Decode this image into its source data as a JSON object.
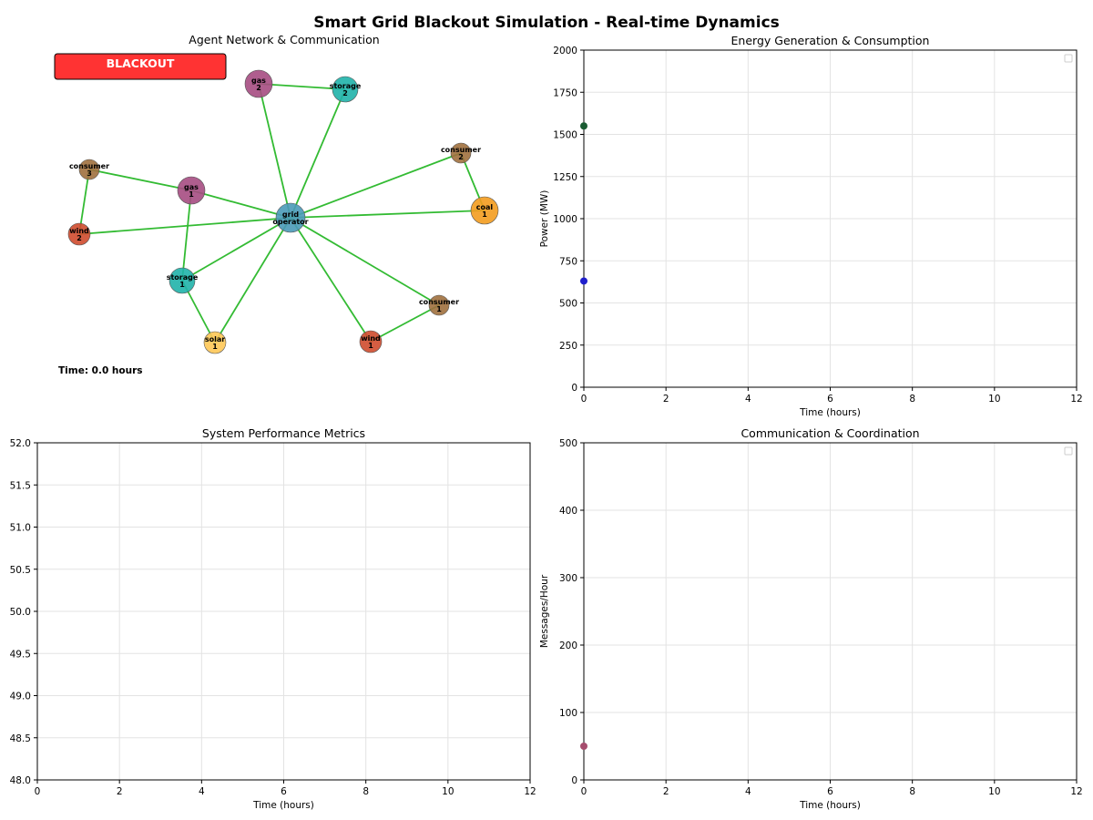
{
  "figure": {
    "title": "Smart Grid Blackout Simulation - Real-time Dynamics"
  },
  "network": {
    "title": "Agent Network & Communication",
    "status": {
      "label": "BLACKOUT",
      "color": "#ff3333"
    },
    "time_label": "Time: 0.0 hours",
    "edge_color": "#33bb33",
    "nodes": [
      {
        "id": "grid_operator",
        "line1": "grid",
        "line2": "operator",
        "color": "#4a9ab8"
      },
      {
        "id": "gas_2",
        "line1": "gas",
        "line2": "2",
        "color": "#a64d82"
      },
      {
        "id": "storage_2",
        "line1": "storage",
        "line2": "2",
        "color": "#20b2aa"
      },
      {
        "id": "consumer_2",
        "line1": "consumer",
        "line2": "2",
        "color": "#a0703e"
      },
      {
        "id": "consumer_3",
        "line1": "consumer",
        "line2": "3",
        "color": "#a0703e"
      },
      {
        "id": "gas_1",
        "line1": "gas",
        "line2": "1",
        "color": "#a64d82"
      },
      {
        "id": "coal_1",
        "line1": "coal",
        "line2": "1",
        "color": "#f39c1f"
      },
      {
        "id": "wind_2",
        "line1": "wind",
        "line2": "2",
        "color": "#cf4b2e"
      },
      {
        "id": "storage_1",
        "line1": "storage",
        "line2": "1",
        "color": "#20b2aa"
      },
      {
        "id": "consumer_1",
        "line1": "consumer",
        "line2": "1",
        "color": "#a0703e"
      },
      {
        "id": "solar_1",
        "line1": "solar",
        "line2": "1",
        "color": "#ffc857"
      },
      {
        "id": "wind_1",
        "line1": "wind",
        "line2": "1",
        "color": "#cf4b2e"
      }
    ],
    "edges": [
      [
        "gas_2",
        "storage_2"
      ],
      [
        "gas_2",
        "grid_operator"
      ],
      [
        "storage_2",
        "grid_operator"
      ],
      [
        "consumer_3",
        "gas_1"
      ],
      [
        "consumer_3",
        "wind_2"
      ],
      [
        "gas_1",
        "grid_operator"
      ],
      [
        "gas_1",
        "storage_1"
      ],
      [
        "wind_2",
        "grid_operator"
      ],
      [
        "consumer_2",
        "grid_operator"
      ],
      [
        "consumer_2",
        "coal_1"
      ],
      [
        "coal_1",
        "grid_operator"
      ],
      [
        "storage_1",
        "grid_operator"
      ],
      [
        "storage_1",
        "solar_1"
      ],
      [
        "solar_1",
        "grid_operator"
      ],
      [
        "wind_1",
        "grid_operator"
      ],
      [
        "wind_1",
        "consumer_1"
      ],
      [
        "consumer_1",
        "grid_operator"
      ]
    ]
  },
  "chart_data": [
    {
      "type": "scatter",
      "title": "Energy Generation & Consumption",
      "xlabel": "Time (hours)",
      "ylabel": "Power (MW)",
      "xlim": [
        0,
        12
      ],
      "ylim": [
        0,
        2000
      ],
      "xticks": [
        0,
        2,
        4,
        6,
        8,
        10,
        12
      ],
      "yticks": [
        0,
        250,
        500,
        750,
        1000,
        1250,
        1500,
        1750,
        2000
      ],
      "grid": true,
      "legend": "top-right",
      "series": [
        {
          "x": [
            0
          ],
          "y": [
            1550
          ],
          "color": "#1a5c32"
        },
        {
          "x": [
            0
          ],
          "y": [
            630
          ],
          "color": "#1f1fcc"
        }
      ]
    },
    {
      "type": "line",
      "title": "System Performance Metrics",
      "xlabel": "Time (hours)",
      "ylabel": "",
      "xlim": [
        0,
        12
      ],
      "ylim": [
        48,
        52
      ],
      "xticks": [
        0,
        2,
        4,
        6,
        8,
        10,
        12
      ],
      "yticks": [
        "48.0",
        "48.5",
        "49.0",
        "49.5",
        "50.0",
        "50.5",
        "51.0",
        "51.5",
        "52.0"
      ],
      "grid": true,
      "series": []
    },
    {
      "type": "scatter",
      "title": "Communication & Coordination",
      "xlabel": "Time (hours)",
      "ylabel": "Messages/Hour",
      "xlim": [
        0,
        12
      ],
      "ylim": [
        0,
        500
      ],
      "xticks": [
        0,
        2,
        4,
        6,
        8,
        10,
        12
      ],
      "yticks": [
        0,
        100,
        200,
        300,
        400,
        500
      ],
      "grid": true,
      "legend": "top-right",
      "series": [
        {
          "x": [
            0
          ],
          "y": [
            50
          ],
          "color": "#a64d6e"
        }
      ]
    }
  ]
}
